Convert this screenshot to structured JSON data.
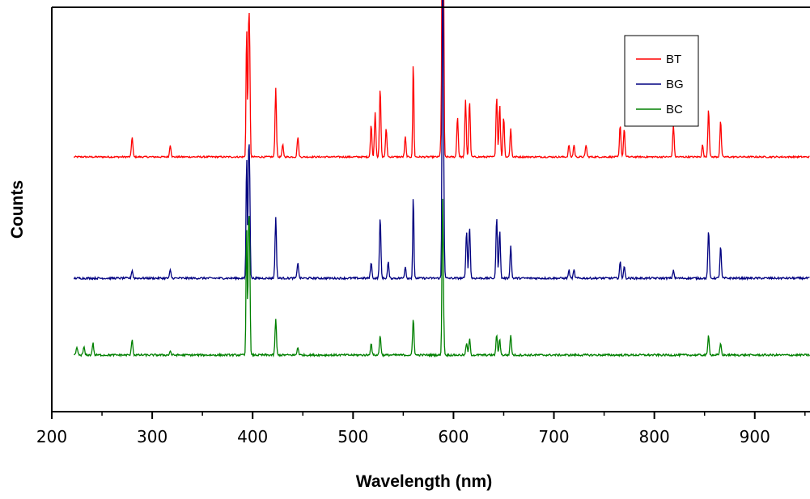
{
  "chart_data": {
    "type": "line",
    "title": "",
    "xlabel": "Wavelength (nm)",
    "ylabel": "Counts",
    "xlim": [
      200,
      955
    ],
    "xticks": [
      200,
      300,
      400,
      500,
      600,
      700,
      800,
      900
    ],
    "y_tick_labels": false,
    "grid": false,
    "legend_position": "top-right",
    "legend": [
      "BT",
      "BG",
      "BC"
    ],
    "series": [
      {
        "name": "BT",
        "color": "#ff0000",
        "offset": 0.63,
        "baseline_noise": 0.004,
        "peaks": [
          [
            280,
            0.05
          ],
          [
            318,
            0.03
          ],
          [
            394,
            0.33
          ],
          [
            396,
            0.28
          ],
          [
            397,
            0.26
          ],
          [
            423,
            0.17
          ],
          [
            430,
            0.03
          ],
          [
            445,
            0.05
          ],
          [
            518,
            0.08
          ],
          [
            522,
            0.11
          ],
          [
            527,
            0.17
          ],
          [
            533,
            0.07
          ],
          [
            552,
            0.05
          ],
          [
            560,
            0.24
          ],
          [
            588,
            0.07
          ],
          [
            589,
            0.6
          ],
          [
            589.6,
            0.45
          ],
          [
            590,
            0.26
          ],
          [
            604,
            0.1
          ],
          [
            612,
            0.14
          ],
          [
            616,
            0.14
          ],
          [
            643,
            0.15
          ],
          [
            646,
            0.13
          ],
          [
            650,
            0.1
          ],
          [
            657,
            0.07
          ],
          [
            715,
            0.03
          ],
          [
            720,
            0.03
          ],
          [
            732,
            0.03
          ],
          [
            766,
            0.08
          ],
          [
            770,
            0.07
          ],
          [
            819,
            0.08
          ],
          [
            848,
            0.03
          ],
          [
            854,
            0.12
          ],
          [
            866,
            0.09
          ]
        ]
      },
      {
        "name": "BG",
        "color": "#000080",
        "offset": 0.33,
        "baseline_noise": 0.005,
        "peaks": [
          [
            280,
            0.02
          ],
          [
            318,
            0.02
          ],
          [
            394,
            0.31
          ],
          [
            396,
            0.27
          ],
          [
            397,
            0.24
          ],
          [
            423,
            0.15
          ],
          [
            445,
            0.04
          ],
          [
            518,
            0.04
          ],
          [
            527,
            0.15
          ],
          [
            535,
            0.04
          ],
          [
            552,
            0.03
          ],
          [
            560,
            0.21
          ],
          [
            589,
            0.47
          ],
          [
            589.6,
            0.33
          ],
          [
            590,
            0.19
          ],
          [
            613,
            0.12
          ],
          [
            616,
            0.13
          ],
          [
            643,
            0.15
          ],
          [
            646,
            0.12
          ],
          [
            657,
            0.08
          ],
          [
            715,
            0.02
          ],
          [
            720,
            0.02
          ],
          [
            766,
            0.04
          ],
          [
            770,
            0.03
          ],
          [
            819,
            0.02
          ],
          [
            854,
            0.12
          ],
          [
            866,
            0.08
          ]
        ]
      },
      {
        "name": "BC",
        "color": "#008000",
        "offset": 0.14,
        "baseline_noise": 0.005,
        "peaks": [
          [
            225,
            0.02
          ],
          [
            232,
            0.02
          ],
          [
            241,
            0.03
          ],
          [
            280,
            0.04
          ],
          [
            318,
            0.01
          ],
          [
            394,
            0.33
          ],
          [
            396,
            0.28
          ],
          [
            397,
            0.25
          ],
          [
            423,
            0.09
          ],
          [
            445,
            0.02
          ],
          [
            518,
            0.03
          ],
          [
            527,
            0.05
          ],
          [
            560,
            0.09
          ],
          [
            589,
            0.26
          ],
          [
            589.6,
            0.17
          ],
          [
            613,
            0.03
          ],
          [
            616,
            0.04
          ],
          [
            643,
            0.05
          ],
          [
            646,
            0.04
          ],
          [
            657,
            0.05
          ],
          [
            854,
            0.05
          ],
          [
            866,
            0.03
          ]
        ]
      }
    ]
  }
}
